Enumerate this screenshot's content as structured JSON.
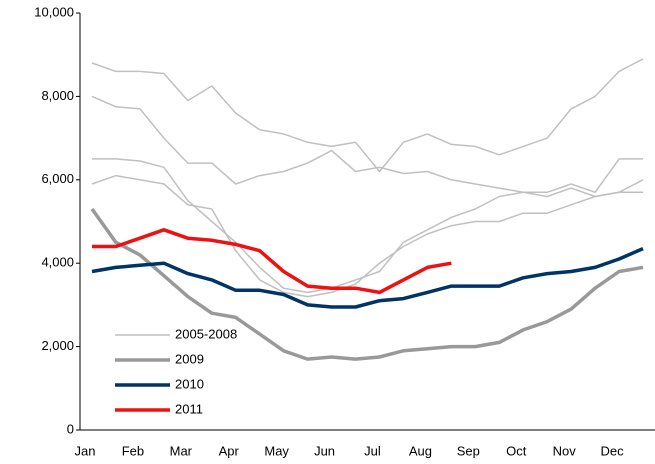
{
  "chart_data": {
    "type": "line",
    "categories": [
      "Jan",
      null,
      "Feb",
      null,
      "Mar",
      null,
      "Apr",
      null,
      "May",
      null,
      "Jun",
      null,
      "Jul",
      null,
      "Aug",
      null,
      "Sep",
      null,
      "Oct",
      null,
      "Nov",
      null,
      "Dec",
      null
    ],
    "ylim": [
      0,
      10000
    ],
    "yticks": [
      0,
      {
        "value": 2000,
        "label": "2,000"
      },
      {
        "value": 4000,
        "label": "4,000"
      },
      {
        "value": 6000,
        "label": "6,000"
      },
      {
        "value": 8000,
        "label": "8,000"
      },
      {
        "value": 10000,
        "label": "10,000"
      }
    ],
    "legend": "lower left",
    "series": [
      {
        "name": "2005-2008",
        "color": "#c0c0c0",
        "line_width": 1.5,
        "values": [
          8800,
          8600,
          8600,
          8550,
          7900,
          8250,
          7600,
          7200,
          7100,
          6900,
          6800,
          6900,
          6200,
          6900,
          7100,
          6850,
          6800,
          6600,
          6800,
          7000,
          7700,
          8000,
          8600,
          8900
        ]
      },
      {
        "color": "#c0c0c0",
        "line_width": 1.5,
        "values": [
          8000,
          7750,
          7700,
          7000,
          6400,
          6400,
          5900,
          6100,
          6200,
          6400,
          6700,
          6200,
          6300,
          6150,
          6200,
          6000,
          5900,
          5800,
          5700,
          5700,
          5900,
          5700,
          6500,
          6500
        ]
      },
      {
        "color": "#c0c0c0",
        "line_width": 1.5,
        "values": [
          6500,
          6500,
          6450,
          6300,
          5500,
          5000,
          4500,
          3900,
          3400,
          3300,
          3400,
          3600,
          3800,
          4500,
          4800,
          5100,
          5300,
          5600,
          5700,
          5600,
          5800,
          5600,
          5700,
          6000
        ]
      },
      {
        "color": "#c0c0c0",
        "line_width": 1.5,
        "values": [
          5900,
          6100,
          6000,
          5900,
          5400,
          5300,
          4300,
          3600,
          3300,
          3200,
          3300,
          3500,
          4000,
          4400,
          4700,
          4900,
          5000,
          5000,
          5200,
          5200,
          5400,
          5600,
          5700,
          5700
        ]
      },
      {
        "name": "2009",
        "color": "#999999",
        "line_width": 3.5,
        "values": [
          5300,
          4500,
          4200,
          3700,
          3200,
          2800,
          2700,
          2300,
          1900,
          1700,
          1750,
          1700,
          1750,
          1900,
          1950,
          2000,
          2000,
          2100,
          2400,
          2600,
          2900,
          3400,
          3800,
          3900
        ]
      },
      {
        "name": "2010",
        "color": "#003366",
        "line_width": 3.5,
        "values": [
          3800,
          3900,
          3950,
          4000,
          3750,
          3600,
          3350,
          3350,
          3250,
          3000,
          2950,
          2950,
          3100,
          3150,
          3300,
          3450,
          3450,
          3450,
          3650,
          3750,
          3800,
          3900,
          4100,
          4350
        ]
      },
      {
        "name": "2011",
        "color": "#ee1111",
        "line_width": 3.5,
        "values": [
          4400,
          4400,
          4600,
          4800,
          4600,
          4550,
          4450,
          4300,
          3800,
          3450,
          3400,
          3400,
          3300,
          3600,
          3900,
          4000,
          null,
          null,
          null,
          null,
          null,
          null,
          null,
          null
        ]
      }
    ]
  }
}
